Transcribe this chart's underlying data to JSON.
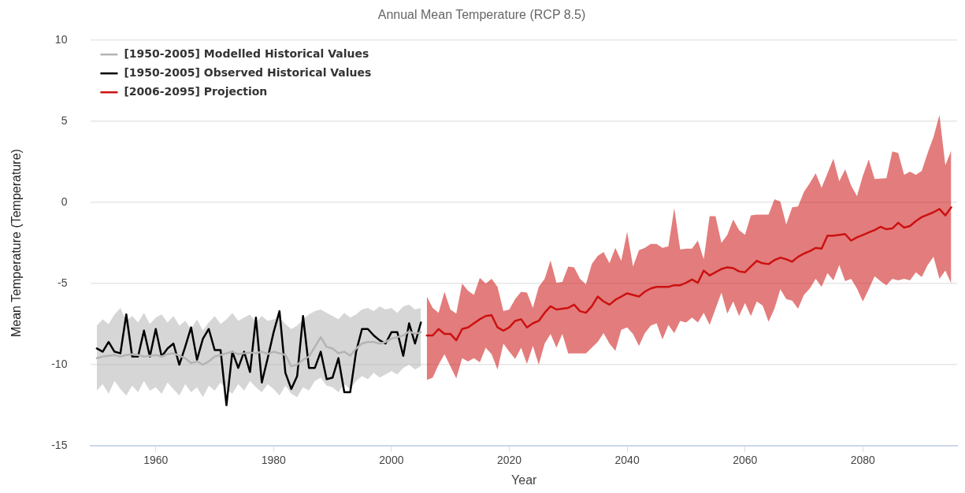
{
  "chart_data": {
    "type": "line",
    "title": "Annual Mean Temperature (RCP 8.5)",
    "xlabel": "Year",
    "ylabel": "Mean Temperature (Temperature)",
    "xlim": [
      1949,
      2096
    ],
    "xticks": [
      1960,
      1980,
      2000,
      2020,
      2040,
      2060,
      2080
    ],
    "ylim": [
      -15,
      10
    ],
    "yticks": [
      -15,
      -10,
      -5,
      0,
      5,
      10
    ],
    "grid": "y",
    "legend": "top left",
    "line_style": "solid",
    "series": [
      {
        "name": "[1950-2005] Modelled Historical Values",
        "color": "#b4b4b4",
        "x": [
          1950,
          1951,
          1952,
          1953,
          1954,
          1955,
          1956,
          1957,
          1958,
          1959,
          1960,
          1961,
          1962,
          1963,
          1964,
          1965,
          1966,
          1967,
          1968,
          1969,
          1970,
          1971,
          1972,
          1973,
          1974,
          1975,
          1976,
          1977,
          1978,
          1979,
          1980,
          1981,
          1982,
          1983,
          1984,
          1985,
          1986,
          1987,
          1988,
          1989,
          1990,
          1991,
          1992,
          1993,
          1994,
          1995,
          1996,
          1997,
          1998,
          1999,
          2000,
          2001,
          2002,
          2003,
          2004,
          2005
        ],
        "values": [
          -9.6,
          -9.5,
          -9.45,
          -9.4,
          -9.5,
          -9.4,
          -9.35,
          -9.4,
          -9.5,
          -9.45,
          -9.4,
          -9.5,
          -9.35,
          -9.3,
          -9.45,
          -9.6,
          -9.9,
          -9.8,
          -10.0,
          -9.8,
          -9.5,
          -9.4,
          -9.3,
          -9.2,
          -9.35,
          -9.3,
          -9.25,
          -9.3,
          -9.2,
          -9.35,
          -9.2,
          -9.3,
          -9.4,
          -10.1,
          -10.0,
          -9.7,
          -9.5,
          -8.9,
          -8.3,
          -8.9,
          -9.0,
          -9.3,
          -9.2,
          -9.45,
          -9.0,
          -8.7,
          -8.6,
          -8.6,
          -8.7,
          -8.6,
          -8.4,
          -8.3,
          -8.2,
          -7.95,
          -8.1,
          -8.0
        ],
        "lower": [
          -11.6,
          -11.2,
          -11.8,
          -11.0,
          -11.5,
          -11.9,
          -11.3,
          -11.7,
          -11.0,
          -11.6,
          -11.4,
          -11.8,
          -11.1,
          -11.5,
          -11.9,
          -11.2,
          -11.7,
          -11.4,
          -12.0,
          -11.3,
          -11.6,
          -11.1,
          -11.5,
          -11.8,
          -11.2,
          -11.6,
          -11.0,
          -11.4,
          -11.7,
          -11.2,
          -11.5,
          -11.9,
          -11.3,
          -11.8,
          -12.0,
          -11.4,
          -11.6,
          -11.0,
          -10.8,
          -11.3,
          -11.4,
          -11.7,
          -11.2,
          -11.5,
          -11.0,
          -10.7,
          -10.9,
          -10.5,
          -10.8,
          -10.6,
          -10.4,
          -10.6,
          -10.2,
          -10.0,
          -10.3,
          -10.1
        ],
        "upper": [
          -7.6,
          -7.2,
          -7.5,
          -6.9,
          -6.5,
          -7.3,
          -7.0,
          -7.4,
          -6.8,
          -7.5,
          -7.1,
          -6.9,
          -7.4,
          -7.0,
          -7.6,
          -7.3,
          -7.8,
          -7.2,
          -7.9,
          -7.4,
          -7.0,
          -7.5,
          -7.2,
          -6.8,
          -7.3,
          -7.1,
          -6.9,
          -7.4,
          -7.0,
          -7.3,
          -7.2,
          -7.1,
          -7.5,
          -7.8,
          -7.6,
          -7.2,
          -6.9,
          -6.7,
          -6.6,
          -6.8,
          -7.0,
          -7.2,
          -6.8,
          -7.1,
          -6.9,
          -6.6,
          -6.5,
          -6.7,
          -6.4,
          -6.6,
          -6.5,
          -6.8,
          -6.4,
          -6.3,
          -6.6,
          -6.5
        ]
      },
      {
        "name": "[1950-2005] Observed Historical Values",
        "color": "#000000",
        "x": [
          1950,
          1951,
          1952,
          1953,
          1954,
          1955,
          1956,
          1957,
          1958,
          1959,
          1960,
          1961,
          1962,
          1963,
          1964,
          1965,
          1966,
          1967,
          1968,
          1969,
          1970,
          1971,
          1972,
          1973,
          1974,
          1975,
          1976,
          1977,
          1978,
          1979,
          1980,
          1981,
          1982,
          1983,
          1984,
          1985,
          1986,
          1987,
          1988,
          1989,
          1990,
          1991,
          1992,
          1993,
          1994,
          1995,
          1996,
          1997,
          1998,
          1999,
          2000,
          2001,
          2002,
          2003,
          2004,
          2005
        ],
        "values": [
          -9.0,
          -9.2,
          -8.6,
          -9.2,
          -9.3,
          -6.9,
          -9.5,
          -9.5,
          -7.9,
          -9.5,
          -7.8,
          -9.5,
          -9.0,
          -8.7,
          -10.0,
          -8.9,
          -7.7,
          -9.7,
          -8.4,
          -7.8,
          -9.1,
          -9.1,
          -12.5,
          -9.2,
          -10.2,
          -9.2,
          -10.45,
          -7.1,
          -11.1,
          -9.6,
          -8.0,
          -6.7,
          -10.5,
          -11.5,
          -10.7,
          -7.0,
          -10.2,
          -10.2,
          -9.2,
          -10.9,
          -10.8,
          -9.6,
          -11.7,
          -11.7,
          -9.2,
          -7.8,
          -7.8,
          -8.2,
          -8.5,
          -8.7,
          -8.0,
          -8.0,
          -9.45,
          -7.45,
          -8.7,
          -7.4
        ]
      },
      {
        "name": "[2006-2095] Projection",
        "color": "#cc1111",
        "x": [
          2006,
          2007,
          2008,
          2009,
          2010,
          2011,
          2012,
          2013,
          2014,
          2015,
          2016,
          2017,
          2018,
          2019,
          2020,
          2021,
          2022,
          2023,
          2024,
          2025,
          2026,
          2027,
          2028,
          2029,
          2030,
          2031,
          2032,
          2033,
          2034,
          2035,
          2036,
          2037,
          2038,
          2039,
          2040,
          2041,
          2042,
          2043,
          2044,
          2045,
          2046,
          2047,
          2048,
          2049,
          2050,
          2051,
          2052,
          2053,
          2054,
          2055,
          2056,
          2057,
          2058,
          2059,
          2060,
          2061,
          2062,
          2063,
          2064,
          2065,
          2066,
          2067,
          2068,
          2069,
          2070,
          2071,
          2072,
          2073,
          2074,
          2075,
          2076,
          2077,
          2078,
          2079,
          2080,
          2081,
          2082,
          2083,
          2084,
          2085,
          2086,
          2087,
          2088,
          2089,
          2090,
          2091,
          2092,
          2093,
          2094,
          2095
        ],
        "values": [
          -8.2,
          -8.2,
          -7.8,
          -8.1,
          -8.1,
          -8.5,
          -7.8,
          -7.7,
          -7.45,
          -7.2,
          -7.0,
          -6.95,
          -7.7,
          -7.9,
          -7.7,
          -7.3,
          -7.2,
          -7.7,
          -7.45,
          -7.3,
          -6.8,
          -6.4,
          -6.6,
          -6.55,
          -6.5,
          -6.3,
          -6.7,
          -6.8,
          -6.4,
          -5.8,
          -6.1,
          -6.3,
          -6.0,
          -5.8,
          -5.6,
          -5.7,
          -5.8,
          -5.5,
          -5.3,
          -5.2,
          -5.2,
          -5.2,
          -5.1,
          -5.1,
          -4.95,
          -4.75,
          -4.95,
          -4.2,
          -4.5,
          -4.3,
          -4.1,
          -4.0,
          -4.05,
          -4.25,
          -4.3,
          -3.95,
          -3.6,
          -3.75,
          -3.8,
          -3.55,
          -3.4,
          -3.5,
          -3.65,
          -3.35,
          -3.15,
          -3.0,
          -2.8,
          -2.85,
          -2.05,
          -2.05,
          -2.0,
          -1.95,
          -2.35,
          -2.15,
          -2.0,
          -1.85,
          -1.7,
          -1.5,
          -1.65,
          -1.6,
          -1.25,
          -1.55,
          -1.45,
          -1.15,
          -0.9,
          -0.75,
          -0.6,
          -0.4,
          -0.8,
          -0.3
        ],
        "lower": [
          -10.95,
          -10.8,
          -10.0,
          -9.35,
          -10.1,
          -10.85,
          -9.6,
          -9.8,
          -9.6,
          -9.85,
          -8.95,
          -9.35,
          -10.3,
          -8.7,
          -9.2,
          -9.65,
          -8.95,
          -9.95,
          -8.85,
          -10.0,
          -8.7,
          -8.1,
          -8.95,
          -8.1,
          -9.3,
          -9.3,
          -9.3,
          -9.3,
          -8.95,
          -8.6,
          -8.05,
          -8.7,
          -9.15,
          -7.85,
          -7.7,
          -8.1,
          -8.85,
          -8.05,
          -7.6,
          -7.45,
          -8.45,
          -7.55,
          -8.05,
          -7.3,
          -7.4,
          -7.1,
          -7.4,
          -6.8,
          -7.55,
          -6.55,
          -5.55,
          -6.85,
          -6.1,
          -7.0,
          -6.2,
          -7.0,
          -6.1,
          -6.35,
          -7.35,
          -6.55,
          -5.35,
          -5.95,
          -6.05,
          -6.55,
          -5.7,
          -5.3,
          -4.7,
          -5.2,
          -4.35,
          -4.8,
          -3.85,
          -4.85,
          -4.7,
          -5.3,
          -6.1,
          -5.35,
          -4.55,
          -4.85,
          -5.1,
          -4.7,
          -4.8,
          -4.7,
          -4.8,
          -4.3,
          -4.6,
          -3.85,
          -3.35,
          -4.7,
          -4.2,
          -5.0
        ],
        "upper": [
          -5.8,
          -6.5,
          -6.8,
          -5.5,
          -6.6,
          -6.85,
          -5.0,
          -5.45,
          -5.7,
          -4.65,
          -5.0,
          -4.7,
          -5.2,
          -6.7,
          -6.6,
          -5.95,
          -5.5,
          -5.55,
          -6.5,
          -5.2,
          -4.7,
          -3.57,
          -4.95,
          -4.9,
          -3.95,
          -4.0,
          -4.7,
          -5.05,
          -3.8,
          -3.3,
          -3.05,
          -3.75,
          -2.8,
          -3.6,
          -1.8,
          -3.95,
          -2.95,
          -2.8,
          -2.55,
          -2.55,
          -2.8,
          -2.7,
          -0.35,
          -2.9,
          -2.85,
          -2.85,
          -2.35,
          -3.5,
          -0.85,
          -0.85,
          -2.5,
          -2.0,
          -1.05,
          -1.7,
          -2.0,
          -0.8,
          -0.75,
          -0.75,
          -0.75,
          0.2,
          0.05,
          -1.35,
          -0.3,
          -0.25,
          0.65,
          1.2,
          1.8,
          0.9,
          1.8,
          2.7,
          1.3,
          2.05,
          1.05,
          0.4,
          1.65,
          2.65,
          1.45,
          1.47,
          1.5,
          3.15,
          3.05,
          1.7,
          1.9,
          1.7,
          1.95,
          3.05,
          4.05,
          5.4,
          2.3,
          3.2
        ]
      }
    ]
  }
}
